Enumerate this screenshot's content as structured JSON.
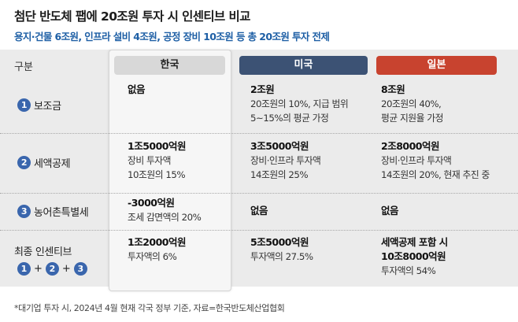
{
  "title": "첨단 반도체 팹에 20조원 투자 시 인센티브 비교",
  "subtitle": "용지·건물 6조원, 인프라 설비 4조원, 공정 장비 10조원 등 총 20조원 투자 전제",
  "header": {
    "category": "구분",
    "korea": "한국",
    "usa": "미국",
    "japan": "일본"
  },
  "colors": {
    "usa": "#3c5274",
    "japan": "#c8432f",
    "korea": "#d8d8d8",
    "accent": "#1e5fa5",
    "badge": "#3a66ad"
  },
  "rows": {
    "subsidy": {
      "num": "1",
      "label": "보조금",
      "korea": {
        "main": "없음",
        "lines": []
      },
      "usa": {
        "main": "2조원",
        "lines": [
          "20조원의 10%, 지급 범위",
          "5~15%의 평균 가정"
        ]
      },
      "japan": {
        "main": "8조원",
        "lines": [
          "20조원의 40%,",
          "평균 지원율 가정"
        ]
      }
    },
    "tax": {
      "num": "2",
      "label": "세액공제",
      "korea": {
        "main": "1조5000억원",
        "lines": [
          "장비 투자액",
          "10조원의 15%"
        ]
      },
      "usa": {
        "main": "3조5000억원",
        "lines": [
          "장비·인프라 투자액",
          "14조원의 25%"
        ]
      },
      "japan": {
        "main": "2조8000억원",
        "lines": [
          "장비·인프라 투자액",
          "14조원의 20%, 현재 추진 중"
        ]
      }
    },
    "rural": {
      "num": "3",
      "label": "농어촌특별세",
      "korea": {
        "main": "-3000억원",
        "lines": [
          "조세 감면액의 20%"
        ]
      },
      "usa": {
        "main": "없음",
        "lines": []
      },
      "japan": {
        "main": "없음",
        "lines": []
      }
    },
    "total": {
      "label": "최종 인센티브",
      "formula": [
        "1",
        "+",
        "2",
        "+",
        "3"
      ],
      "korea": {
        "main": "1조2000억원",
        "lines": [
          "투자액의 6%"
        ]
      },
      "usa": {
        "main": "5조5000억원",
        "lines": [
          "투자액의 27.5%"
        ]
      },
      "japan": {
        "main_lines": [
          "세액공제 포함 시",
          "10조8000억원"
        ],
        "lines": [
          "투자액의 54%"
        ]
      }
    }
  },
  "footnote": "*대기업 투자 시, 2024년 4월 현재 각국 정부 기준, 자료=한국반도체산업협회"
}
